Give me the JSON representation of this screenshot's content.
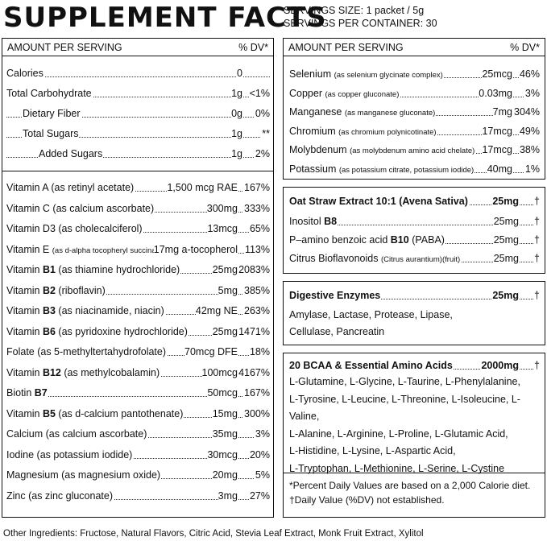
{
  "title": "SUPPLEMENT FACTS",
  "serving_size": "SERVINGS SIZE: 1 packet / 5g",
  "servings_per_container": "SERVINGS PER CONTAINER: 30",
  "left": {
    "header_left": "AMOUNT PER SERVING",
    "header_right": "% DV*",
    "macros": [
      {
        "name": "Calories",
        "amount": "0",
        "dv": ""
      },
      {
        "name": "Total Carbohydrate",
        "amount": "1g",
        "dv": "<1%"
      },
      {
        "name": "Dietary Fiber",
        "amount": "0g",
        "dv": "0%"
      },
      {
        "name": "Total Sugars",
        "amount": "1g",
        "dv": "**"
      },
      {
        "name": "Added Sugars",
        "amount": "1g",
        "dv": "2%"
      }
    ],
    "vitamins": [
      {
        "name": "Vitamin A (as retinyl acetate)",
        "amount": "1,500 mcg RAE",
        "dv": "167%"
      },
      {
        "name": "Vitamin C (as calcium ascorbate)",
        "amount": "300mg",
        "dv": "333%"
      },
      {
        "name": "Vitamin D3 (as cholecalciferol)",
        "amount": "13mcg",
        "dv": "65%"
      },
      {
        "name": "Vitamin E",
        "note": "(as d-alpha tocopheryl succinate)",
        "amount": "17mg a-tocopherol",
        "dv": "113%"
      },
      {
        "name": "Vitamin",
        "bold": "B1",
        "rest": "(as thiamine hydrochloride)",
        "amount": "25mg",
        "dv": "2083%"
      },
      {
        "name": "Vitamin",
        "bold": "B2",
        "rest": "(riboflavin)",
        "amount": "5mg",
        "dv": "385%"
      },
      {
        "name": "Vitamin",
        "bold": "B3",
        "rest": "(as niacinamide, niacin)",
        "amount": "42mg NE",
        "dv": "263%"
      },
      {
        "name": "Vitamin",
        "bold": "B6",
        "rest": "(as pyridoxine hydrochloride)",
        "amount": "25mg",
        "dv": "1471%"
      },
      {
        "name": "Folate (as 5-methyltertahydrofolate)",
        "amount": "70mcg DFE",
        "dv": "18%"
      },
      {
        "name": "Vitamin",
        "bold": "B12",
        "rest": "(as methylcobalamin)",
        "amount": "100mcg",
        "dv": "4167%"
      },
      {
        "name": "Biotin",
        "bold": "B7",
        "rest": "",
        "amount": "50mcg",
        "dv": "167%"
      },
      {
        "name": "Vitamin",
        "bold": "B5",
        "rest": "(as d-calcium pantothenate)",
        "amount": "15mg",
        "dv": "300%"
      },
      {
        "name": "Calcium (as calcium ascorbate)",
        "amount": "35mg",
        "dv": "3%"
      },
      {
        "name": "Iodine (as potassium iodide)",
        "amount": "30mcg",
        "dv": "20%"
      },
      {
        "name": "Magnesium (as magnesium oxide)",
        "amount": "20mg",
        "dv": "5%"
      },
      {
        "name": "Zinc (as zinc gluconate)",
        "amount": "3mg",
        "dv": "27%"
      }
    ]
  },
  "right": {
    "header_left": "AMOUNT PER SERVING",
    "header_right": "% DV*",
    "minerals": [
      {
        "name": "Selenium",
        "note": "(as selenium glycinate complex)",
        "amount": "25mcg",
        "dv": "46%"
      },
      {
        "name": "Copper",
        "note": "(as copper gluconate)",
        "amount": "0.03mg",
        "dv": "3%"
      },
      {
        "name": "Manganese",
        "note": "(as manganese gluconate)",
        "amount": "7mg",
        "dv": "304%"
      },
      {
        "name": "Chromium",
        "note": "(as chromium polynicotinate)",
        "amount": "17mcg",
        "dv": "49%"
      },
      {
        "name": "Molybdenum",
        "note": "(as molybdenum amino acid chelate)",
        "amount": "17mcg",
        "dv": "38%"
      },
      {
        "name": "Potassium",
        "note": "(as potassium citrate, potassium iodide)",
        "amount": "40mg",
        "dv": "1%"
      }
    ],
    "oat": {
      "title_bold": "Oat Straw Extract 10:1",
      "title_rest": "(Avena Sativa)",
      "amount": "25mg",
      "dv": "†",
      "items": [
        {
          "name": "Inositol",
          "bold": "B8",
          "rest": "",
          "amount": "25mg",
          "dv": "†"
        },
        {
          "name": "P–amino benzoic acid",
          "bold": "B10",
          "rest": "(PABA)",
          "amount": "25mg",
          "dv": "†"
        },
        {
          "name": "Citrus Bioflavonoids",
          "note": "(Citrus aurantium)(fruit)",
          "amount": "25mg",
          "dv": "†"
        }
      ]
    },
    "enzymes": {
      "title": "Digestive Enzymes",
      "amount": "25mg",
      "dv": "†",
      "line1": "Amylase, Lactase, Protease, Lipase,",
      "line2": "Cellulase, Pancreatin"
    },
    "amino": {
      "title": "20 BCAA & Essential Amino Acids",
      "amount": "2000mg",
      "dv": "†",
      "lines": [
        "L-Glutamine, L-Glycine, L-Taurine, L-Phenylalanine,",
        "L-Tyrosine, L-Leucine, L-Threonine, L-Isoleucine,  L-Valine,",
        "L-Alanine, L-Arginine, L-Proline, L-Glutamic Acid,",
        "L-Histidine, L-Lysine, L-Aspartic Acid,",
        "L-Tryptophan, L-Methionine, L-Serine, L-Cystine"
      ]
    },
    "notes": [
      "*Percent Daily Values are based on a 2,000 Calorie diet.",
      "†Daily Value (%DV) not established."
    ]
  },
  "other_ingredients": "Other Ingredients: Fructose, Natural Flavors, Citric Acid, Stevia Leaf Extract, Monk Fruit Extract, Xylitol"
}
